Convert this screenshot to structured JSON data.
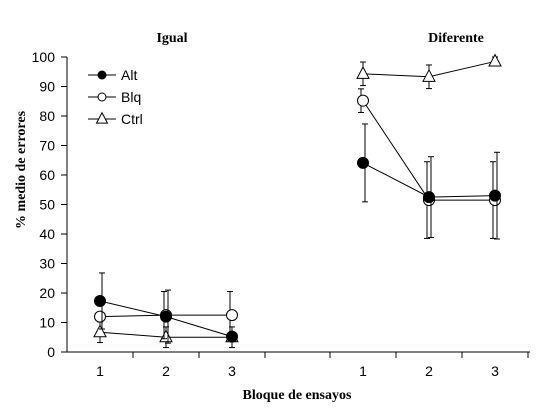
{
  "chart_data": {
    "type": "line",
    "ylabel": "% medio de errores",
    "xlabel": "Bloque de ensayos",
    "ylim": [
      0,
      100
    ],
    "yticks": [
      0,
      10,
      20,
      30,
      40,
      50,
      60,
      70,
      80,
      90,
      100
    ],
    "legend_position": "top-left",
    "panels": [
      {
        "title": "Igual",
        "x": [
          1,
          2,
          3
        ],
        "series": [
          {
            "name": "Alt",
            "marker": "filled-circle",
            "values": [
              17.3,
              12,
              5.2
            ],
            "errors": [
              9.5,
              9,
              0
            ]
          },
          {
            "name": "Blq",
            "marker": "open-circle",
            "values": [
              12,
              12.5,
              12.5
            ],
            "errors": [
              0,
              8,
              8
            ]
          },
          {
            "name": "Ctrl",
            "marker": "open-triangle",
            "values": [
              6.7,
              5,
              5
            ],
            "errors": [
              3.5,
              3.5,
              3.5
            ]
          }
        ]
      },
      {
        "title": "Diferente",
        "x": [
          1,
          2,
          3
        ],
        "series": [
          {
            "name": "Alt",
            "marker": "filled-circle",
            "values": [
              64.1,
              52.5,
              53
            ],
            "errors": [
              13.2,
              13.7,
              14.7
            ]
          },
          {
            "name": "Blq",
            "marker": "open-circle",
            "values": [
              85.2,
              51.5,
              51.5
            ],
            "errors": [
              4,
              13,
              13
            ]
          },
          {
            "name": "Ctrl",
            "marker": "open-triangle",
            "values": [
              94.3,
              93.3,
              98.5
            ],
            "errors": [
              4,
              4,
              1.5
            ]
          }
        ]
      }
    ]
  }
}
